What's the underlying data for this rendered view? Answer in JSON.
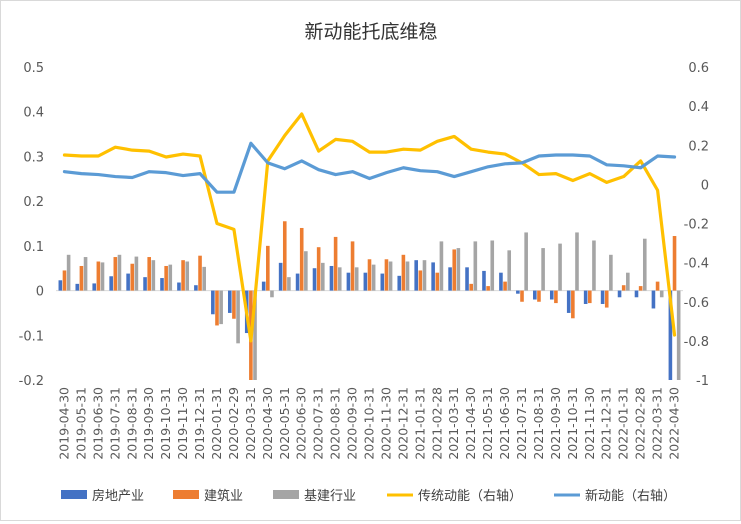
{
  "chart_data": {
    "type": "bar+line",
    "title": "新动能托底维稳",
    "categories": [
      "2019-04-30",
      "2019-05-31",
      "2019-06-30",
      "2019-07-31",
      "2019-08-31",
      "2019-09-30",
      "2019-10-31",
      "2019-11-30",
      "2019-12-31",
      "2020-01-31",
      "2020-02-29",
      "2020-03-31",
      "2020-04-30",
      "2020-05-31",
      "2020-06-30",
      "2020-07-31",
      "2020-08-31",
      "2020-09-30",
      "2020-10-31",
      "2020-11-30",
      "2020-12-31",
      "2021-01-31",
      "2021-02-28",
      "2021-03-31",
      "2021-04-30",
      "2021-05-31",
      "2021-06-30",
      "2021-07-31",
      "2021-08-31",
      "2021-09-30",
      "2021-10-31",
      "2021-11-30",
      "2021-12-31",
      "2022-01-31",
      "2022-02-28",
      "2022-03-31",
      "2022-04-30"
    ],
    "left_axis": {
      "ylim": [
        -0.2,
        0.5
      ],
      "ticks": [
        "0.5",
        "0.4",
        "0.3",
        "0.2",
        "0.1",
        "0",
        "-0.1",
        "-0.2"
      ]
    },
    "right_axis": {
      "ylim": [
        -1,
        0.6
      ],
      "ticks": [
        "0.6",
        "0.4",
        "0.2",
        "0",
        "-0.2",
        "-0.4",
        "-0.6",
        "-0.8",
        "-1"
      ]
    },
    "bar_series": [
      {
        "name": "房地产业",
        "color": "#4472c4",
        "values": [
          0.023,
          0.015,
          0.016,
          0.032,
          0.038,
          0.03,
          0.028,
          0.018,
          0.012,
          -0.053,
          -0.05,
          -0.095,
          0.02,
          0.062,
          0.038,
          0.05,
          0.055,
          0.04,
          0.04,
          0.038,
          0.033,
          0.068,
          0.063,
          0.052,
          0.052,
          0.044,
          0.04,
          -0.007,
          -0.02,
          -0.02,
          -0.05,
          -0.03,
          -0.03,
          -0.015,
          -0.015,
          -0.04,
          -0.2
        ]
      },
      {
        "name": "建筑业",
        "color": "#ed7d31",
        "values": [
          0.045,
          0.055,
          0.065,
          0.075,
          0.06,
          0.075,
          0.055,
          0.068,
          0.078,
          -0.078,
          -0.063,
          -0.2,
          0.1,
          0.155,
          0.14,
          0.097,
          0.12,
          0.11,
          0.07,
          0.07,
          0.08,
          0.045,
          0.04,
          0.092,
          0.015,
          0.01,
          0.02,
          -0.025,
          -0.025,
          -0.028,
          -0.062,
          -0.028,
          -0.038,
          0.012,
          0.01,
          0.02,
          0.122
        ]
      },
      {
        "name": "基建行业",
        "color": "#a5a5a5",
        "values": [
          0.08,
          0.075,
          0.063,
          0.08,
          0.076,
          0.068,
          0.058,
          0.065,
          0.053,
          -0.075,
          -0.118,
          -0.2,
          -0.015,
          0.03,
          0.088,
          0.062,
          0.052,
          0.052,
          0.058,
          0.065,
          0.065,
          0.068,
          0.11,
          0.095,
          0.11,
          0.112,
          0.09,
          0.13,
          0.095,
          0.105,
          0.13,
          0.112,
          0.08,
          0.04,
          0.116,
          -0.015,
          -0.2
        ]
      }
    ],
    "line_series": [
      {
        "name": "传统动能（右轴）",
        "color": "#ffc000",
        "values": [
          0.15,
          0.145,
          0.145,
          0.19,
          0.175,
          0.17,
          0.14,
          0.155,
          0.145,
          -0.2,
          -0.23,
          -0.8,
          0.12,
          0.25,
          0.36,
          0.17,
          0.23,
          0.22,
          0.165,
          0.165,
          0.18,
          0.175,
          0.22,
          0.245,
          0.18,
          0.165,
          0.155,
          0.11,
          0.05,
          0.055,
          0.02,
          0.055,
          0.01,
          0.04,
          0.12,
          -0.03,
          -0.77
        ]
      },
      {
        "name": "新动能（右轴）",
        "color": "#5b9bd5",
        "values": [
          0.065,
          0.055,
          0.05,
          0.04,
          0.035,
          0.065,
          0.06,
          0.045,
          0.055,
          -0.04,
          -0.04,
          0.21,
          0.11,
          0.08,
          0.12,
          0.075,
          0.05,
          0.065,
          0.03,
          0.06,
          0.085,
          0.07,
          0.065,
          0.04,
          0.065,
          0.09,
          0.105,
          0.11,
          0.145,
          0.15,
          0.15,
          0.145,
          0.1,
          0.095,
          0.085,
          0.145,
          0.14
        ]
      }
    ],
    "legend_position": "bottom",
    "grid": false
  }
}
